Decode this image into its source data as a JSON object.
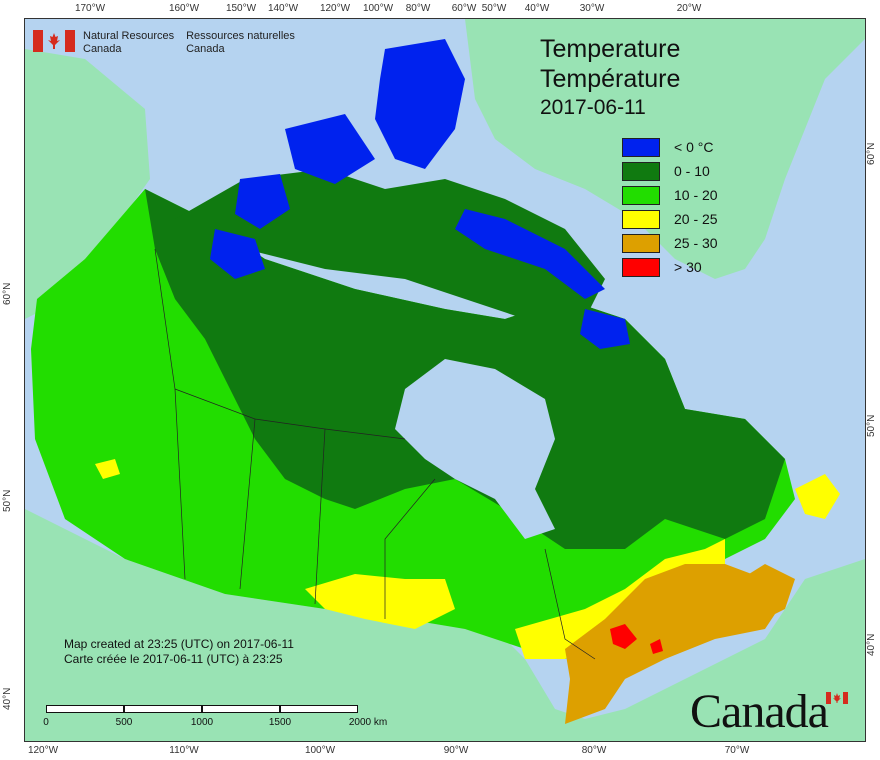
{
  "map": {
    "title_en": "Temperature",
    "title_fr": "Température",
    "date": "2017-06-11",
    "legend": [
      {
        "label": "< 0 °C",
        "color": "#0022ee"
      },
      {
        "label": "0 - 10",
        "color": "#107a10"
      },
      {
        "label": "10 - 20",
        "color": "#22dd00"
      },
      {
        "label": "20 - 25",
        "color": "#ffff00"
      },
      {
        "label": "25 - 30",
        "color": "#dda000"
      },
      {
        "label": "> 30",
        "color": "#ff0000"
      }
    ],
    "agency_en": [
      "Natural Resources",
      "Canada"
    ],
    "agency_fr": [
      "Ressources naturelles",
      "Canada"
    ],
    "credit_en": "Map created at 23:25 (UTC) on 2017-06-11",
    "credit_fr": "Carte créée le 2017-06-11 (UTC) à 23:25",
    "scale": {
      "labels": [
        "0",
        "500",
        "1000",
        "1500",
        "2000 km"
      ]
    },
    "wordmark": "Canada",
    "top_ticks": [
      "170°W",
      "160°W",
      "150°W",
      "140°W",
      "120°W",
      "100°W",
      "80°W",
      "60°W",
      "50°W",
      "40°W",
      "30°W",
      "20°W"
    ],
    "bottom_ticks": [
      "120°W",
      "110°W",
      "100°W",
      "90°W",
      "80°W",
      "70°W"
    ],
    "left_ticks": [
      "60°N",
      "50°N",
      "40°N"
    ],
    "right_ticks": [
      "60°N",
      "50°N",
      "40°N"
    ],
    "colors": {
      "water": "#b5d3f0",
      "other_land": "#99e3b4"
    }
  }
}
